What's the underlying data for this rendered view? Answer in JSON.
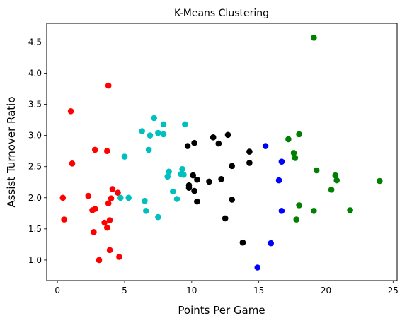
{
  "chart_data": {
    "type": "scatter",
    "title": "K-Means Clustering",
    "xlabel": "Points Per Game",
    "ylabel": "Assist Turnover Ratio",
    "xlim": [
      -0.8,
      25.3
    ],
    "ylim": [
      0.67,
      4.8
    ],
    "xticks": [
      0,
      5,
      10,
      15,
      20,
      25
    ],
    "yticks": [
      1.0,
      1.5,
      2.0,
      2.5,
      3.0,
      3.5,
      4.0,
      4.5
    ],
    "grid": false,
    "legend": "none",
    "series": [
      {
        "color": "#ff0000",
        "points": [
          [
            0.4,
            2.0
          ],
          [
            0.5,
            1.65
          ],
          [
            1.0,
            3.39
          ],
          [
            1.1,
            2.55
          ],
          [
            2.3,
            2.03
          ],
          [
            2.6,
            1.8
          ],
          [
            2.7,
            1.45
          ],
          [
            2.8,
            1.82
          ],
          [
            2.8,
            2.77
          ],
          [
            3.1,
            1.0
          ],
          [
            3.5,
            1.6
          ],
          [
            3.7,
            1.52
          ],
          [
            3.7,
            2.75
          ],
          [
            3.8,
            1.91
          ],
          [
            3.8,
            3.8
          ],
          [
            3.9,
            1.16
          ],
          [
            3.9,
            1.64
          ],
          [
            4.0,
            1.99
          ],
          [
            4.1,
            2.14
          ],
          [
            4.5,
            2.08
          ],
          [
            4.6,
            1.05
          ]
        ]
      },
      {
        "color": "#00bfbf",
        "points": [
          [
            4.7,
            2.0
          ],
          [
            5.0,
            2.66
          ],
          [
            5.3,
            2.0
          ],
          [
            6.3,
            3.07
          ],
          [
            6.5,
            1.95
          ],
          [
            6.6,
            1.79
          ],
          [
            6.8,
            2.77
          ],
          [
            6.9,
            3.0
          ],
          [
            7.2,
            3.28
          ],
          [
            7.5,
            1.69
          ],
          [
            7.5,
            3.04
          ],
          [
            7.9,
            3.02
          ],
          [
            7.9,
            3.18
          ],
          [
            8.2,
            2.34
          ],
          [
            8.3,
            2.42
          ],
          [
            8.6,
            2.1
          ],
          [
            8.9,
            1.98
          ],
          [
            9.2,
            2.38
          ],
          [
            9.3,
            2.46
          ],
          [
            9.4,
            2.37
          ],
          [
            9.5,
            3.18
          ]
        ]
      },
      {
        "color": "#000000",
        "points": [
          [
            9.7,
            2.83
          ],
          [
            9.8,
            2.16
          ],
          [
            9.8,
            2.2
          ],
          [
            10.1,
            2.36
          ],
          [
            10.2,
            2.11
          ],
          [
            10.2,
            2.88
          ],
          [
            10.4,
            1.94
          ],
          [
            10.4,
            2.29
          ],
          [
            11.3,
            2.26
          ],
          [
            11.6,
            2.97
          ],
          [
            12.0,
            2.87
          ],
          [
            12.2,
            2.3
          ],
          [
            12.5,
            1.67
          ],
          [
            12.7,
            3.01
          ],
          [
            13.0,
            1.97
          ],
          [
            13.0,
            2.51
          ],
          [
            13.8,
            1.28
          ],
          [
            14.3,
            2.74
          ],
          [
            14.3,
            2.56
          ]
        ]
      },
      {
        "color": "#0000ff",
        "points": [
          [
            14.9,
            0.88
          ],
          [
            15.5,
            2.83
          ],
          [
            15.9,
            1.27
          ],
          [
            16.5,
            2.28
          ],
          [
            16.7,
            2.58
          ],
          [
            16.7,
            1.79
          ]
        ]
      },
      {
        "color": "#008000",
        "points": [
          [
            17.2,
            2.94
          ],
          [
            17.6,
            2.72
          ],
          [
            17.7,
            2.64
          ],
          [
            17.8,
            1.65
          ],
          [
            18.0,
            3.02
          ],
          [
            18.0,
            1.88
          ],
          [
            19.1,
            4.57
          ],
          [
            19.1,
            1.79
          ],
          [
            19.3,
            2.44
          ],
          [
            20.4,
            2.13
          ],
          [
            20.7,
            2.36
          ],
          [
            20.8,
            2.28
          ],
          [
            21.8,
            1.8
          ],
          [
            24.0,
            2.27
          ]
        ]
      }
    ]
  }
}
